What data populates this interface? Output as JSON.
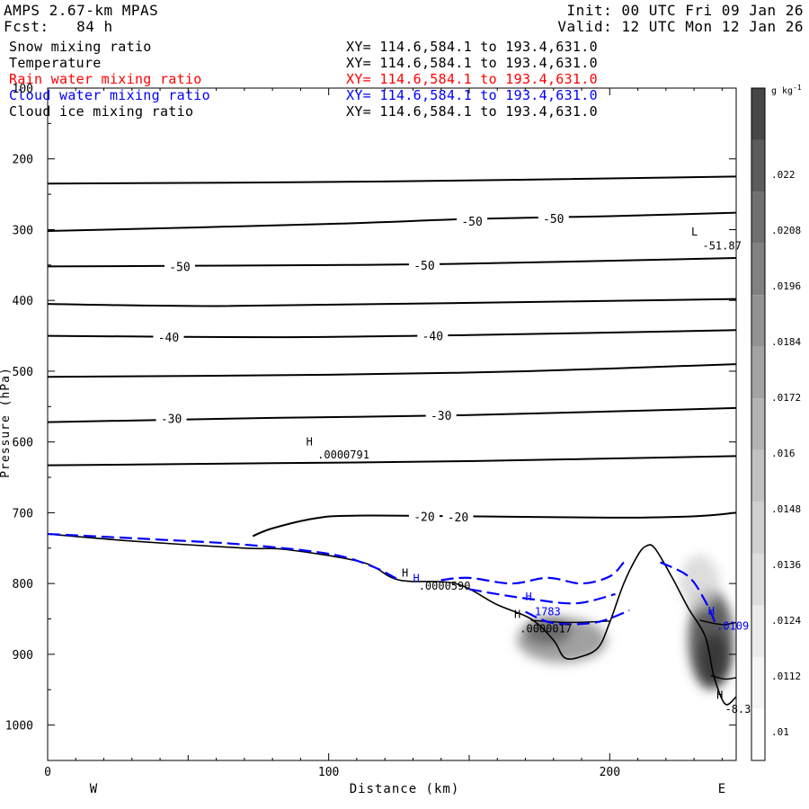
{
  "header": {
    "model": "AMPS 2.67-km MPAS",
    "init": "Init: 00 UTC Fri 09 Jan 26",
    "fcst": "Fcst:   84 h",
    "valid": "Valid: 12 UTC Mon 12 Jan 26"
  },
  "fields": [
    {
      "name": "Snow mixing ratio",
      "xy": "XY= 114.6,584.1 to 193.4,631.0",
      "color": "#000000"
    },
    {
      "name": "Temperature",
      "xy": "XY= 114.6,584.1 to 193.4,631.0",
      "color": "#000000"
    },
    {
      "name": "Rain water mixing ratio",
      "xy": "XY= 114.6,584.1 to 193.4,631.0",
      "color": "#ff0000"
    },
    {
      "name": "Cloud water mixing ratio",
      "xy": "XY= 114.6,584.1 to 193.4,631.0",
      "color": "#0000ff"
    },
    {
      "name": "Cloud ice mixing ratio",
      "xy": "XY= 114.6,584.1 to 193.4,631.0",
      "color": "#000000"
    }
  ],
  "chart_data": {
    "type": "contour-cross-section",
    "xlabel": "Distance (km)",
    "ylabel": "Pressure (hPa)",
    "xlim": [
      0,
      245
    ],
    "ylim": [
      1050,
      100
    ],
    "x_ticks": [
      0,
      100,
      200
    ],
    "y_ticks": [
      100,
      200,
      300,
      400,
      500,
      600,
      700,
      800,
      900,
      1000
    ],
    "x_end_labels": {
      "left": "W",
      "right": "E"
    },
    "colorbar": {
      "units": "g kg",
      "units_exp": "-1",
      "labels": [
        ".022",
        ".0208",
        ".0196",
        ".0184",
        ".0172",
        ".016",
        ".0148",
        ".0136",
        ".0124",
        ".0112",
        ".01"
      ],
      "greys": [
        "#ffffff",
        "#f5f5f5",
        "#ebebeb",
        "#dddddd",
        "#d0d0d0",
        "#c2c2c2",
        "#b3b3b3",
        "#a3a3a3",
        "#939393",
        "#818181",
        "#707070",
        "#5c5c5c",
        "#474747"
      ]
    },
    "temperature_isotherms": [
      {
        "points": [
          [
            0,
            235
          ],
          [
            120,
            232
          ],
          [
            245,
            225
          ]
        ]
      },
      {
        "points": [
          [
            0,
            302
          ],
          [
            100,
            292
          ],
          [
            150,
            285
          ],
          [
            200,
            281
          ],
          [
            245,
            276
          ]
        ],
        "labels": [
          {
            "x": 151,
            "y": 288,
            "text": "-50"
          },
          {
            "x": 180,
            "y": 284,
            "text": "-50"
          }
        ]
      },
      {
        "points": [
          [
            0,
            352
          ],
          [
            100,
            350
          ],
          [
            150,
            348
          ],
          [
            245,
            340
          ]
        ],
        "labels": [
          {
            "x": 47,
            "y": 352,
            "text": "-50"
          },
          {
            "x": 134,
            "y": 350,
            "text": "-50"
          }
        ]
      },
      {
        "points": [
          [
            0,
            405
          ],
          [
            60,
            408
          ],
          [
            140,
            404
          ],
          [
            245,
            398
          ]
        ]
      },
      {
        "points": [
          [
            0,
            450
          ],
          [
            80,
            452
          ],
          [
            150,
            449
          ],
          [
            245,
            442
          ]
        ],
        "labels": [
          {
            "x": 43,
            "y": 452,
            "text": "-40"
          },
          {
            "x": 137,
            "y": 450,
            "text": "-40"
          }
        ]
      },
      {
        "points": [
          [
            0,
            508
          ],
          [
            100,
            505
          ],
          [
            170,
            500
          ],
          [
            245,
            490
          ]
        ]
      },
      {
        "points": [
          [
            0,
            572
          ],
          [
            80,
            566
          ],
          [
            150,
            562
          ],
          [
            245,
            552
          ]
        ],
        "labels": [
          {
            "x": 44,
            "y": 567,
            "text": "-30"
          },
          {
            "x": 140,
            "y": 562,
            "text": "-30"
          }
        ]
      },
      {
        "points": [
          [
            0,
            633
          ],
          [
            80,
            630
          ],
          [
            150,
            627
          ],
          [
            245,
            620
          ]
        ]
      },
      {
        "points": [
          [
            73,
            733
          ],
          [
            80,
            722
          ],
          [
            95,
            708
          ],
          [
            110,
            704
          ],
          [
            150,
            705
          ],
          [
            200,
            707
          ],
          [
            230,
            705
          ],
          [
            245,
            700
          ]
        ],
        "labels": [
          {
            "x": 134,
            "y": 705,
            "text": "-20"
          },
          {
            "x": 146,
            "y": 706,
            "text": "-20"
          }
        ]
      }
    ],
    "terrain": [
      [
        0,
        730
      ],
      [
        30,
        740
      ],
      [
        70,
        750
      ],
      [
        85,
        752
      ],
      [
        112,
        770
      ],
      [
        125,
        795
      ],
      [
        145,
        800
      ],
      [
        160,
        830
      ],
      [
        172,
        850
      ],
      [
        180,
        880
      ],
      [
        184,
        905
      ],
      [
        190,
        903
      ],
      [
        196,
        890
      ],
      [
        200,
        855
      ],
      [
        205,
        800
      ],
      [
        210,
        760
      ],
      [
        213,
        747
      ],
      [
        216,
        750
      ],
      [
        222,
        790
      ],
      [
        228,
        835
      ],
      [
        234,
        875
      ],
      [
        237,
        930
      ],
      [
        241,
        970
      ],
      [
        245,
        960
      ]
    ],
    "cloud_water_dashed": [
      [
        [
          0,
          730
        ],
        [
          40,
          738
        ],
        [
          70,
          745
        ],
        [
          100,
          758
        ],
        [
          115,
          775
        ],
        [
          125,
          795
        ]
      ],
      [
        [
          140,
          795
        ],
        [
          150,
          792
        ],
        [
          165,
          800
        ],
        [
          178,
          792
        ],
        [
          190,
          800
        ],
        [
          200,
          790
        ],
        [
          205,
          770
        ]
      ],
      [
        [
          150,
          808
        ],
        [
          160,
          815
        ],
        [
          172,
          822
        ],
        [
          188,
          828
        ],
        [
          202,
          815
        ]
      ],
      [
        [
          170,
          840
        ],
        [
          180,
          856
        ],
        [
          195,
          855
        ],
        [
          207,
          838
        ]
      ],
      [
        [
          218,
          770
        ],
        [
          228,
          790
        ],
        [
          234,
          825
        ],
        [
          238,
          860
        ]
      ]
    ],
    "annotations": [
      {
        "x": 92,
        "y": 605,
        "text": "H",
        "color": "#000000"
      },
      {
        "x": 96,
        "y": 623,
        "text": ".0000791",
        "color": "#000000"
      },
      {
        "x": 229,
        "y": 308,
        "text": "L",
        "color": "#000000"
      },
      {
        "x": 233,
        "y": 328,
        "text": "-51.87",
        "color": "#000000"
      },
      {
        "x": 126,
        "y": 790,
        "text": "H",
        "color": "#000000"
      },
      {
        "x": 130,
        "y": 798,
        "text": "H",
        "color": "#0000ff"
      },
      {
        "x": 132,
        "y": 809,
        "text": ".0000590",
        "color": "#000000"
      },
      {
        "x": 170,
        "y": 824,
        "text": "H",
        "color": "#0000ff"
      },
      {
        "x": 171,
        "y": 845,
        "text": ".1783",
        "color": "#0000ff"
      },
      {
        "x": 166,
        "y": 849,
        "text": "H",
        "color": "#000000"
      },
      {
        "x": 168,
        "y": 869,
        "text": ".0000017",
        "color": "#000000"
      },
      {
        "x": 235,
        "y": 844,
        "text": "H",
        "color": "#0000ff"
      },
      {
        "x": 238,
        "y": 865,
        "text": ".0109",
        "color": "#0000ff"
      },
      {
        "x": 238,
        "y": 963,
        "text": "H",
        "color": "#000000"
      },
      {
        "x": 241,
        "y": 983,
        "text": "-8.3",
        "color": "#000000"
      }
    ]
  }
}
